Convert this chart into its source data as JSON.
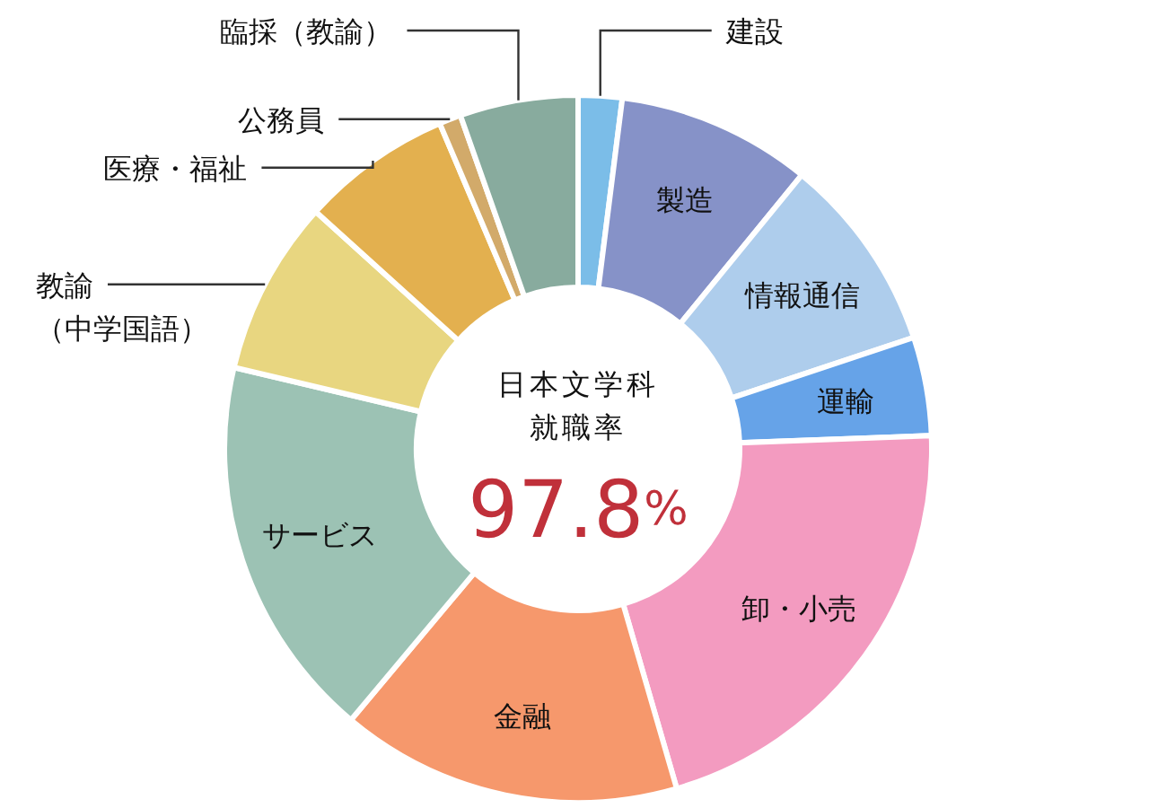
{
  "chart_data": {
    "type": "donut",
    "title": "日本文学科就職率",
    "annotations": [
      "97.8%"
    ],
    "categories": [
      "建設",
      "製造",
      "情報通信",
      "運輸",
      "卸・小売",
      "金融",
      "サービス",
      "教諭（中学国語）",
      "医療・福祉",
      "公務員",
      "臨採（教諭）"
    ],
    "values": [
      2,
      8.9,
      9,
      4.5,
      21.1,
      15.6,
      17.6,
      8,
      6.9,
      1,
      5.4
    ],
    "colors": [
      "#7bbde8",
      "#8692c8",
      "#aecdec",
      "#66a3e8",
      "#f39bc0",
      "#f6986c",
      "#9cc2b4",
      "#e8d680",
      "#e3b04f",
      "#d2aa6a",
      "#88ab9e"
    ]
  }
}
